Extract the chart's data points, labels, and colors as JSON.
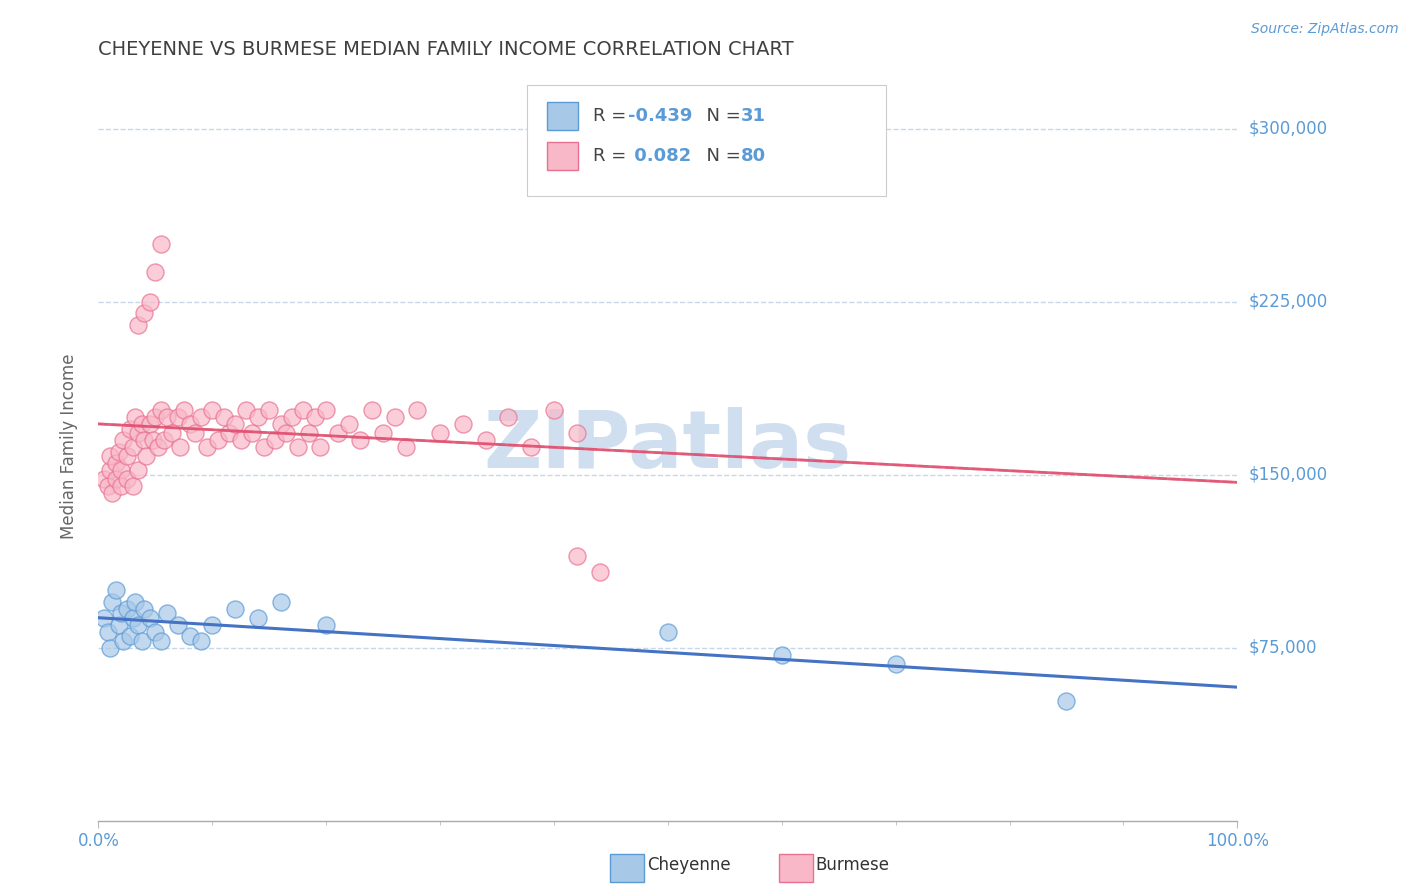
{
  "title": "CHEYENNE VS BURMESE MEDIAN FAMILY INCOME CORRELATION CHART",
  "source": "Source: ZipAtlas.com",
  "ylabel": "Median Family Income",
  "y_tick_labels": [
    "$300,000",
    "$225,000",
    "$150,000",
    "$75,000"
  ],
  "y_tick_values": [
    300000,
    225000,
    150000,
    75000
  ],
  "ylim": [
    0,
    325000
  ],
  "xlim": [
    0.0,
    1.0
  ],
  "x_tick_labels": [
    "0.0%",
    "100.0%"
  ],
  "cheyenne_color": "#a8c8e8",
  "burmese_color": "#f8b8c8",
  "cheyenne_edge_color": "#5b9bd5",
  "burmese_edge_color": "#e87090",
  "cheyenne_line_color": "#4472c4",
  "burmese_line_color": "#e05070",
  "background_color": "#ffffff",
  "grid_color": "#c8d8e8",
  "title_color": "#404040",
  "axis_label_color": "#666666",
  "tick_label_color": "#5b9bd5",
  "source_color": "#5b9bd5",
  "watermark_color": "#d0dff0",
  "legend_r_cheyenne": "-0.439",
  "legend_n_cheyenne": "31",
  "legend_r_burmese": "0.082",
  "legend_n_burmese": "80",
  "cheyenne_x": [
    0.005,
    0.008,
    0.01,
    0.012,
    0.015,
    0.018,
    0.02,
    0.022,
    0.025,
    0.028,
    0.03,
    0.032,
    0.035,
    0.038,
    0.04,
    0.045,
    0.05,
    0.055,
    0.06,
    0.07,
    0.08,
    0.09,
    0.1,
    0.12,
    0.14,
    0.16,
    0.2,
    0.5,
    0.6,
    0.7,
    0.85
  ],
  "cheyenne_y": [
    88000,
    82000,
    75000,
    95000,
    100000,
    85000,
    90000,
    78000,
    92000,
    80000,
    88000,
    95000,
    85000,
    78000,
    92000,
    88000,
    82000,
    78000,
    90000,
    85000,
    80000,
    78000,
    85000,
    92000,
    88000,
    95000,
    85000,
    82000,
    72000,
    68000,
    52000
  ],
  "burmese_x": [
    0.005,
    0.008,
    0.01,
    0.01,
    0.012,
    0.015,
    0.015,
    0.018,
    0.02,
    0.02,
    0.022,
    0.025,
    0.025,
    0.028,
    0.03,
    0.03,
    0.032,
    0.035,
    0.035,
    0.038,
    0.04,
    0.042,
    0.045,
    0.048,
    0.05,
    0.052,
    0.055,
    0.058,
    0.06,
    0.065,
    0.07,
    0.072,
    0.075,
    0.08,
    0.085,
    0.09,
    0.095,
    0.1,
    0.105,
    0.11,
    0.115,
    0.12,
    0.125,
    0.13,
    0.135,
    0.14,
    0.145,
    0.15,
    0.155,
    0.16,
    0.165,
    0.17,
    0.175,
    0.18,
    0.185,
    0.19,
    0.195,
    0.2,
    0.21,
    0.22,
    0.23,
    0.24,
    0.25,
    0.26,
    0.27,
    0.28,
    0.3,
    0.32,
    0.34,
    0.36,
    0.38,
    0.4,
    0.42,
    0.035,
    0.04,
    0.045,
    0.05,
    0.055,
    0.42,
    0.44
  ],
  "burmese_y": [
    148000,
    145000,
    152000,
    158000,
    142000,
    155000,
    148000,
    160000,
    152000,
    145000,
    165000,
    158000,
    148000,
    170000,
    162000,
    145000,
    175000,
    168000,
    152000,
    172000,
    165000,
    158000,
    172000,
    165000,
    175000,
    162000,
    178000,
    165000,
    175000,
    168000,
    175000,
    162000,
    178000,
    172000,
    168000,
    175000,
    162000,
    178000,
    165000,
    175000,
    168000,
    172000,
    165000,
    178000,
    168000,
    175000,
    162000,
    178000,
    165000,
    172000,
    168000,
    175000,
    162000,
    178000,
    168000,
    175000,
    162000,
    178000,
    168000,
    172000,
    165000,
    178000,
    168000,
    175000,
    162000,
    178000,
    168000,
    172000,
    165000,
    175000,
    162000,
    178000,
    168000,
    215000,
    220000,
    225000,
    238000,
    250000,
    115000,
    108000
  ]
}
